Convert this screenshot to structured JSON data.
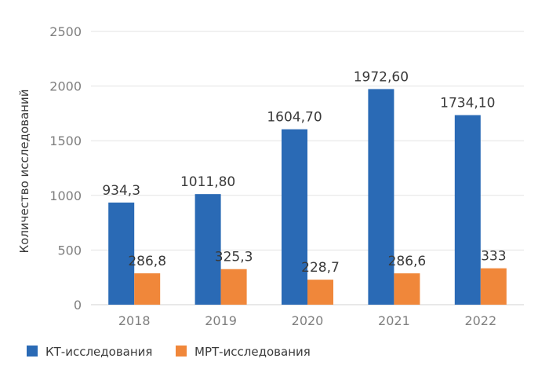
{
  "chart_data": {
    "type": "bar",
    "categories": [
      "2018",
      "2019",
      "2020",
      "2021",
      "2022"
    ],
    "series": [
      {
        "name": "КТ-исследования",
        "values": [
          934.3,
          1011.8,
          1604.7,
          1972.6,
          1734.1
        ],
        "labels": [
          "934,3",
          "1011,80",
          "1604,70",
          "1972,60",
          "1734,10"
        ],
        "color": "#2a6ab5"
      },
      {
        "name": "МРТ-исследования",
        "values": [
          286.8,
          325.3,
          228.7,
          286.6,
          333
        ],
        "labels": [
          "286,8",
          "325,3",
          "228,7",
          "286,6",
          "333"
        ],
        "color": "#f0873a"
      }
    ],
    "ylabel": "Количество исследований",
    "ylim": [
      0,
      2500
    ],
    "yticks": [
      "0",
      "500",
      "1000",
      "1500",
      "2000",
      "2500"
    ],
    "grid": true,
    "legend": "bottom-left"
  }
}
